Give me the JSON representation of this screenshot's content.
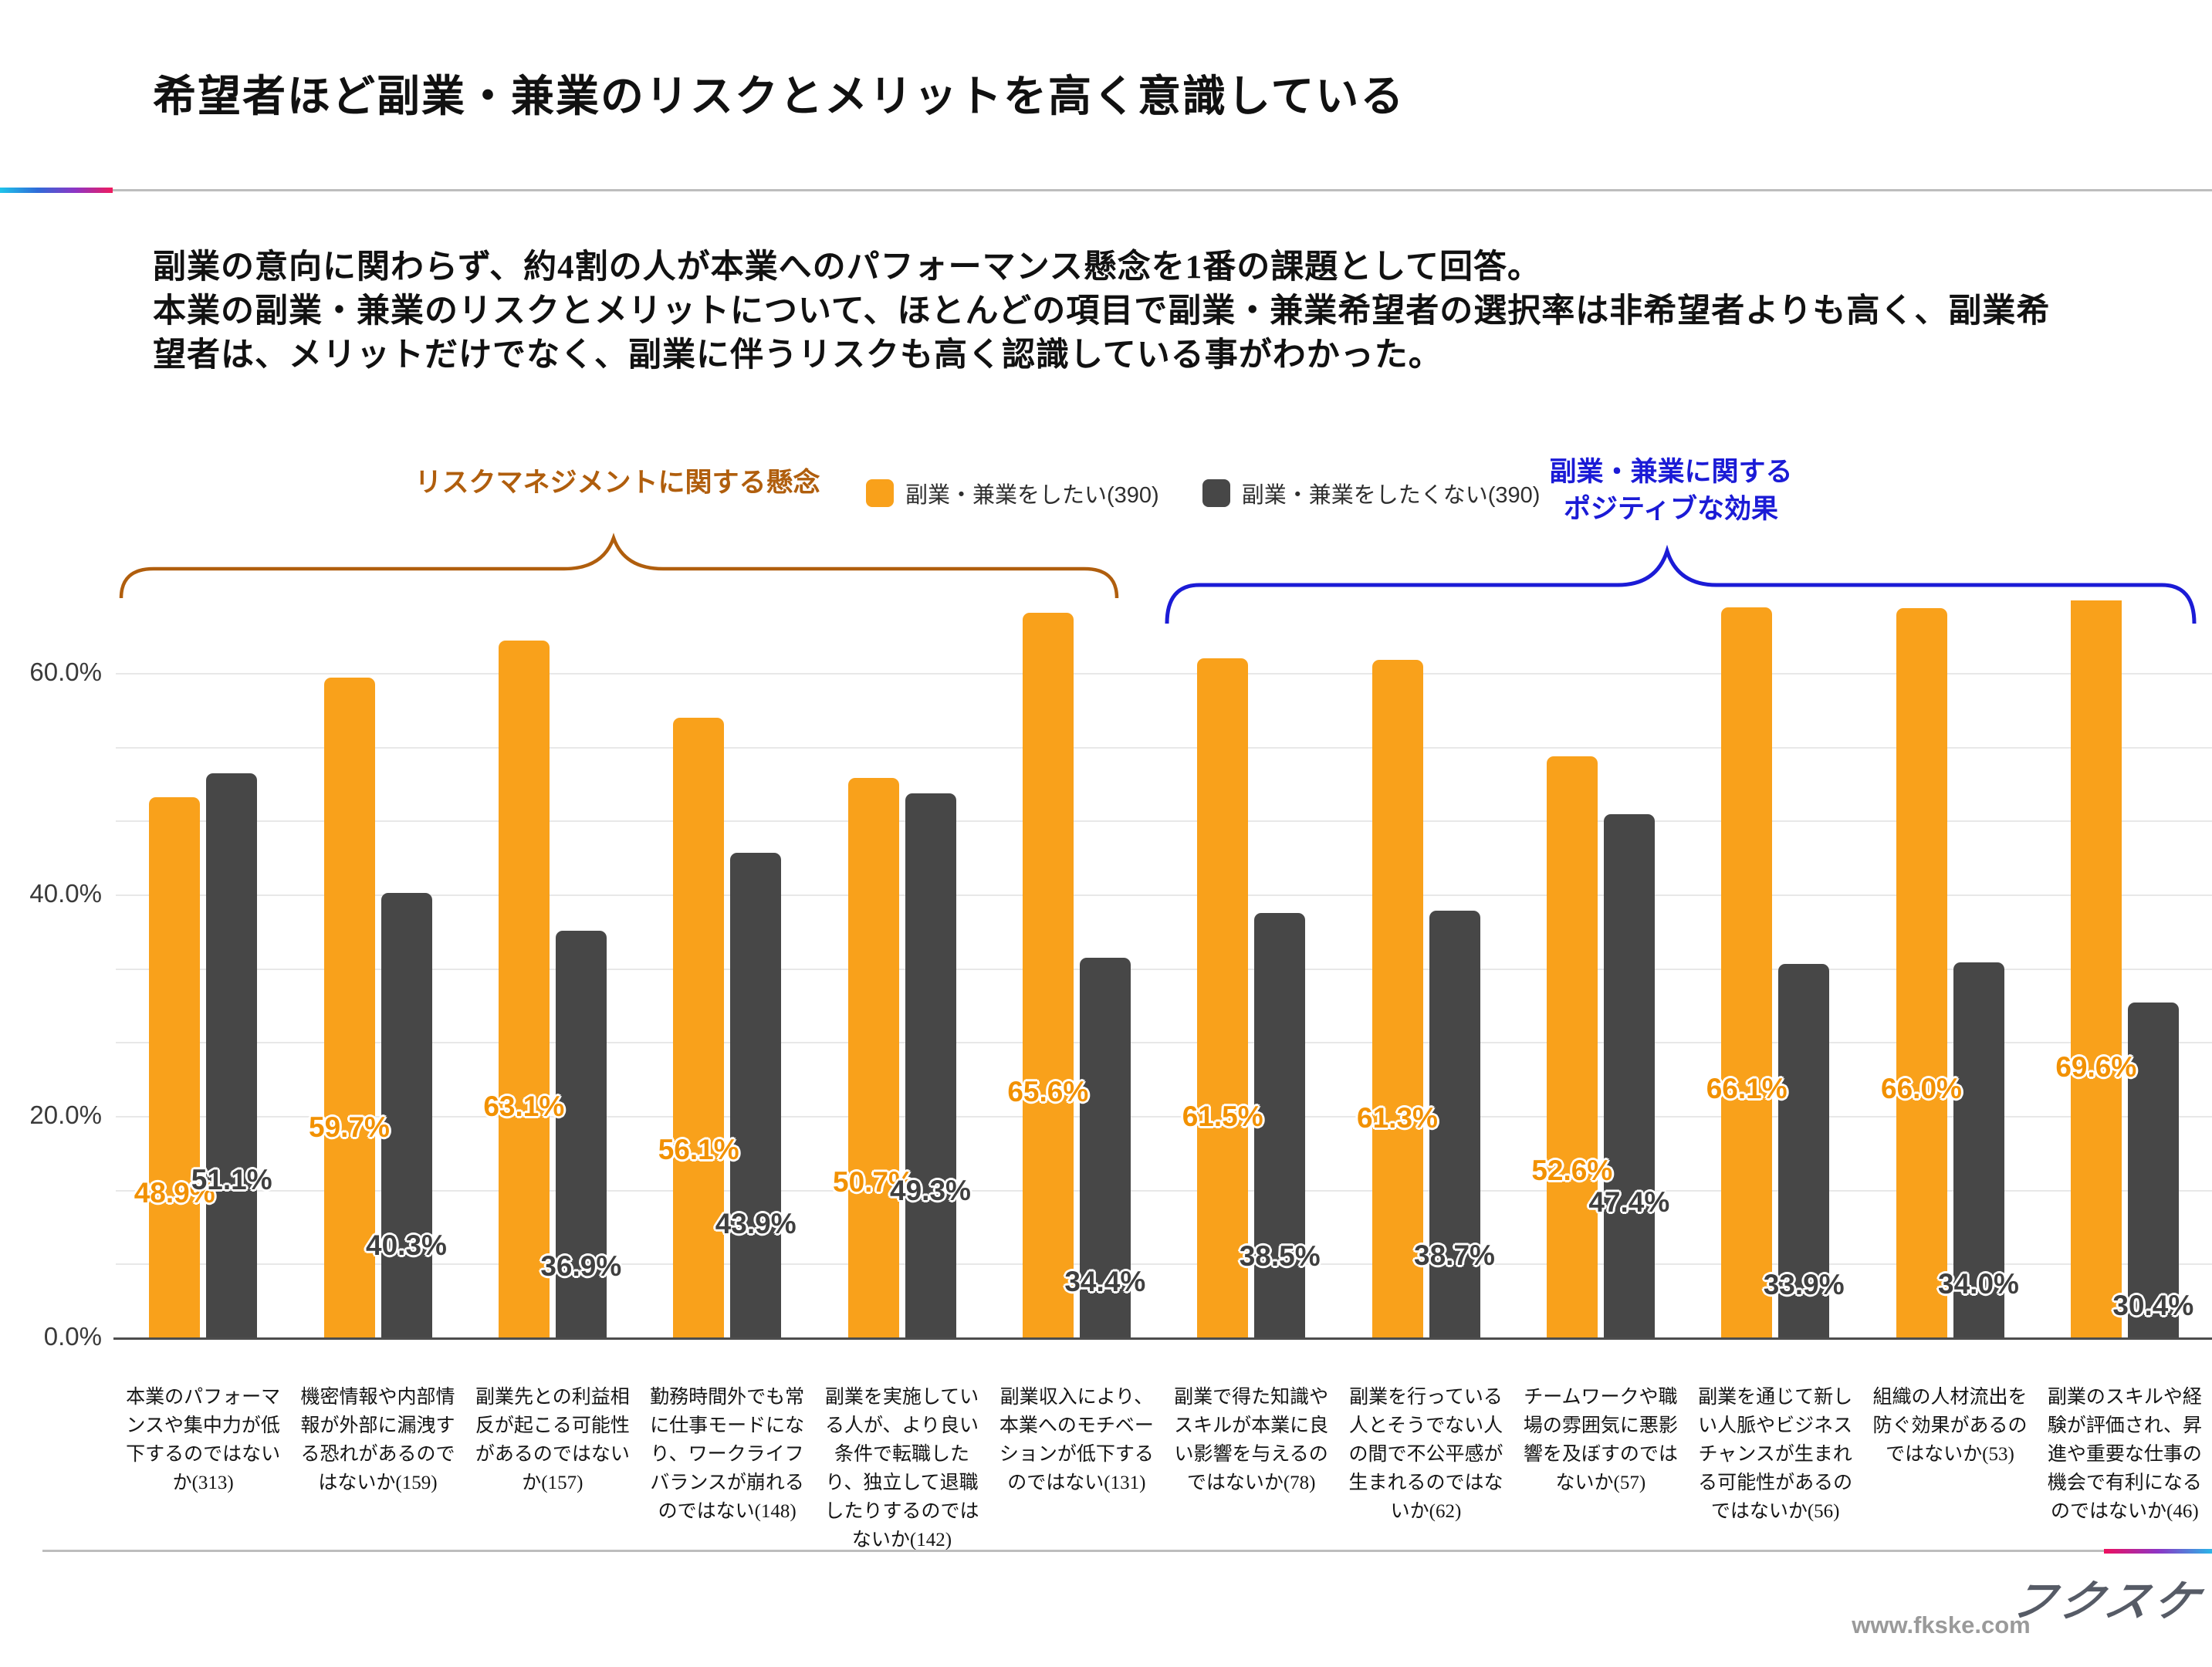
{
  "page": {
    "title": "希望者ほど副業・兼業のリスクとメリットを高く意識している",
    "lead": [
      "副業の意向に関わらず、約4割の人が本業へのパフォーマンス懸念を1番の課題として回答。",
      "本業の副業・兼業のリスクとメリットについて、ほとんどの項目で副業・兼業希望者の選択率は非希望者よりも高く、副業希",
      "望者は、メリットだけでなく、副業に伴うリスクも高く認識している事がわかった。"
    ]
  },
  "annotations": {
    "risk": {
      "label": "リスクマネジメントに関する懸念",
      "color": "#B05E0D"
    },
    "positive": {
      "label_lines": [
        "副業・兼業に関する",
        "ポジティブな効果"
      ],
      "color": "#1B1BD6"
    }
  },
  "legend": {
    "items": [
      {
        "label": "副業・兼業をしたい(390)",
        "color": "#F9A11B"
      },
      {
        "label": "副業・兼業をしたくない(390)",
        "color": "#474747"
      }
    ]
  },
  "chart_data": {
    "type": "bar",
    "categories": [
      "本業のパフォーマンスや集中力が低下するのではないか(313)",
      "機密情報や内部情報が外部に漏洩する恐れがあるのではないか(159)",
      "副業先との利益相反が起こる可能性があるのではないか(157)",
      "勤務時間外でも常に仕事モードになり、ワークライフバランスが崩れるのではない(148)",
      "副業を実施している人が、より良い条件で転職したり、独立して退職したりするのではないか(142)",
      "副業収入により、本業へのモチベーションが低下するのではない(131)",
      "副業で得た知識やスキルが本業に良い影響を与えるのではないか(78)",
      "副業を行っている人とそうでない人の間で不公平感が生まれるのではないか(62)",
      "チームワークや職場の雰囲気に悪影響を及ぼすのではないか(57)",
      "副業を通じて新しい人脈やビジネスチャンスが生まれる可能性があるのではないか(56)",
      "組織の人材流出を防ぐ効果があるのではないか(53)",
      "副業のスキルや経験が評価され、昇進や重要な仕事の機会で有利になるのではないか(46)"
    ],
    "series": [
      {
        "name": "副業・兼業をしたい(390)",
        "color": "#F9A11B",
        "label_color": "#F29100",
        "values": [
          48.9,
          59.7,
          63.1,
          56.1,
          50.7,
          65.6,
          61.5,
          61.3,
          52.6,
          66.1,
          66.0,
          69.6
        ]
      },
      {
        "name": "副業・兼業をしたくない(390)",
        "color": "#474747",
        "label_color": "#3F3F3F",
        "values": [
          51.1,
          40.3,
          36.9,
          43.9,
          49.3,
          34.4,
          38.5,
          38.7,
          47.4,
          33.9,
          34.0,
          30.4
        ]
      }
    ],
    "yticks": [
      {
        "label": "0.0%",
        "value": 0
      },
      {
        "label": "20.0%",
        "value": 20
      },
      {
        "label": "40.0%",
        "value": 40
      },
      {
        "label": "60.0%",
        "value": 60
      }
    ],
    "ylim": [
      0,
      66.7
    ],
    "grid_step": 6.667,
    "grid": true,
    "legend_position": "top"
  },
  "footer": {
    "site": "www.fkske.com",
    "logo": "フクスケ"
  }
}
